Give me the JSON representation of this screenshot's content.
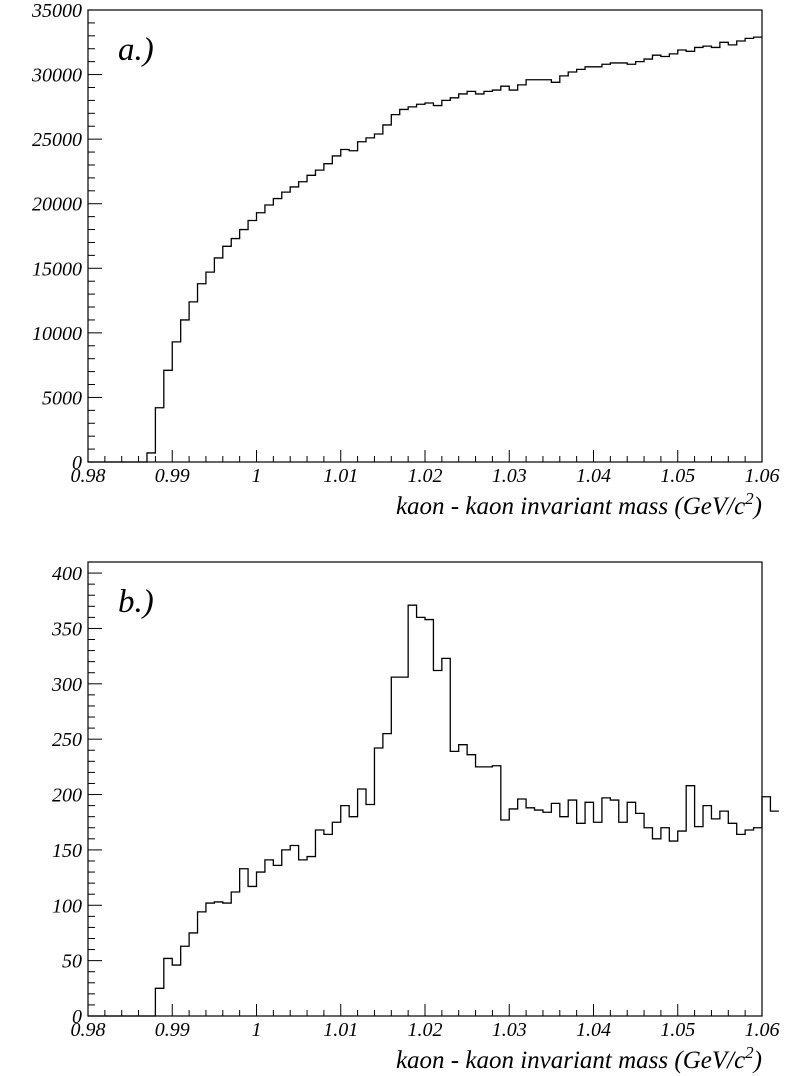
{
  "chart_data": [
    {
      "type": "histogram",
      "panel_label": "a.)",
      "xlabel": "kaon - kaon invariant mass (GeV/c",
      "xlabel_superscript": "2",
      "xlabel_close": ")",
      "ylabel": "",
      "xlim": [
        0.98,
        1.06
      ],
      "ylim": [
        0,
        35000
      ],
      "x_major_ticks": [
        0.98,
        0.99,
        1.0,
        1.01,
        1.02,
        1.03,
        1.04,
        1.05,
        1.06
      ],
      "x_tick_labels": [
        "0.98",
        "0.99",
        "1",
        "1.01",
        "1.02",
        "1.03",
        "1.04",
        "1.05",
        "1.06"
      ],
      "y_major_ticks": [
        0,
        5000,
        10000,
        15000,
        20000,
        25000,
        30000,
        35000
      ],
      "y_tick_labels": [
        "0",
        "5000",
        "10000",
        "15000",
        "20000",
        "25000",
        "30000",
        "35000"
      ],
      "bin_width": 0.001,
      "bin_start": 0.98,
      "counts": [
        0,
        0,
        0,
        0,
        0,
        0,
        0,
        700,
        4200,
        7100,
        9300,
        11000,
        12400,
        13800,
        14700,
        15800,
        16700,
        17300,
        18000,
        18700,
        19300,
        19900,
        20400,
        20900,
        21300,
        21700,
        22200,
        22600,
        23100,
        23700,
        24200,
        24100,
        24800,
        25100,
        25400,
        26100,
        26900,
        27300,
        27500,
        27700,
        27800,
        27600,
        28000,
        28200,
        28500,
        28700,
        28500,
        28700,
        28800,
        29100,
        28800,
        29200,
        29600,
        29600,
        29600,
        29400,
        29900,
        30200,
        30400,
        30600,
        30600,
        30800,
        30900,
        30900,
        30800,
        31000,
        31200,
        31500,
        31400,
        31600,
        31900,
        31800,
        32100,
        32200,
        32100,
        32500,
        32300,
        32600,
        32800,
        32900
      ]
    },
    {
      "type": "histogram",
      "panel_label": "b.)",
      "xlabel": "kaon - kaon invariant mass (GeV/c",
      "xlabel_superscript": "2",
      "xlabel_close": ")",
      "ylabel": "",
      "xlim": [
        0.98,
        1.06
      ],
      "ylim": [
        0,
        410
      ],
      "x_major_ticks": [
        0.98,
        0.99,
        1.0,
        1.01,
        1.02,
        1.03,
        1.04,
        1.05,
        1.06
      ],
      "x_tick_labels": [
        "0.98",
        "0.99",
        "1",
        "1.01",
        "1.02",
        "1.03",
        "1.04",
        "1.05",
        "1.06"
      ],
      "y_major_ticks": [
        0,
        50,
        100,
        150,
        200,
        250,
        300,
        350,
        400
      ],
      "y_tick_labels": [
        "0",
        "50",
        "100",
        "150",
        "200",
        "250",
        "300",
        "350",
        "400"
      ],
      "bin_width": 0.001,
      "bin_start": 0.98,
      "counts": [
        0,
        0,
        0,
        0,
        0,
        0,
        0,
        0,
        25,
        52,
        46,
        63,
        75,
        94,
        102,
        103,
        102,
        112,
        133,
        117,
        130,
        141,
        136,
        150,
        154,
        141,
        144,
        168,
        164,
        175,
        190,
        180,
        205,
        191,
        242,
        255,
        306,
        306,
        371,
        360,
        358,
        312,
        323,
        239,
        245,
        236,
        225,
        225,
        226,
        177,
        187,
        196,
        188,
        186,
        184,
        192,
        180,
        195,
        174,
        193,
        175,
        197,
        195,
        175,
        193,
        183,
        170,
        160,
        170,
        158,
        167,
        208,
        171,
        190,
        178,
        185,
        174,
        164,
        168,
        170,
        198,
        185
      ]
    }
  ]
}
